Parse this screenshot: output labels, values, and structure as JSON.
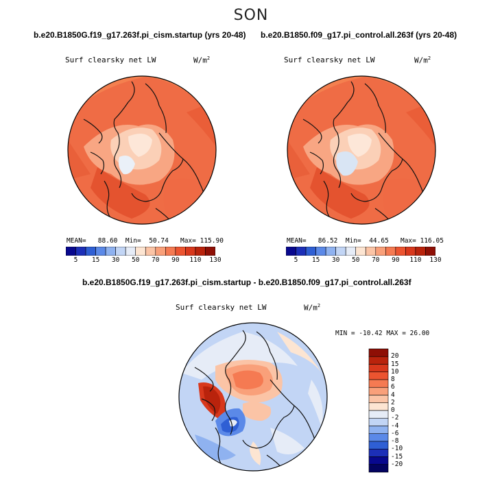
{
  "figure": {
    "season": "SON",
    "variable": "Surf clearsky net LW",
    "units_base": "W/m",
    "units_exp": "2"
  },
  "panel_left": {
    "case": "b.e20.B1850G.f19_g17.263f.pi_cism.startup (yrs 20-48)",
    "mean_label": "MEAN=",
    "mean": "88.60",
    "min_label": "Min=",
    "min": "50.74",
    "max_label": "Max=",
    "max": "115.90"
  },
  "panel_right": {
    "case": "b.e20.B1850.f09_g17.pi_control.all.263f (yrs 20-48)",
    "mean_label": "MEAN=",
    "mean": "86.52",
    "min_label": "Min=",
    "min": "44.65",
    "max_label": "Max=",
    "max": "116.05"
  },
  "panel_diff": {
    "case": "b.e20.B1850G.f19_g17.263f.pi_cism.startup - b.e20.B1850.f09_g17.pi_control.all.263f",
    "minmax_text": "MIN = -10.42 MAX =  26.00"
  },
  "chart_data": [
    {
      "type": "heatmap",
      "projection": "north polar stereographic",
      "title": "Surf clearsky net LW",
      "units": "W/m^2",
      "colorbar": {
        "orientation": "horizontal",
        "labels": [
          "5",
          "15",
          "30",
          "50",
          "70",
          "90",
          "110",
          "130"
        ],
        "colors": [
          "#08088e",
          "#1c2fb8",
          "#2f5fd4",
          "#5b89e8",
          "#8fb2f0",
          "#c2d5f5",
          "#e6ecf7",
          "#fde5d2",
          "#fbc4a6",
          "#f9a07a",
          "#f57a52",
          "#ec5430",
          "#d8381c",
          "#b9230c",
          "#8e0f05"
        ]
      },
      "mean": 88.6,
      "min": 50.74,
      "max": 115.9
    },
    {
      "type": "heatmap",
      "projection": "north polar stereographic",
      "title": "Surf clearsky net LW",
      "units": "W/m^2",
      "colorbar": {
        "orientation": "horizontal",
        "labels": [
          "5",
          "15",
          "30",
          "50",
          "70",
          "90",
          "110",
          "130"
        ]
      },
      "mean": 86.52,
      "min": 44.65,
      "max": 116.05
    },
    {
      "type": "heatmap",
      "projection": "north polar stereographic",
      "title": "Surf clearsky net LW",
      "units": "W/m^2",
      "colorbar": {
        "orientation": "vertical",
        "labels": [
          "20",
          "15",
          "10",
          "8",
          "6",
          "4",
          "2",
          "0",
          "-2",
          "-4",
          "-6",
          "-8",
          "-10",
          "-15",
          "-20"
        ],
        "colors": [
          "#8e0f05",
          "#b9230c",
          "#d8381c",
          "#ec5430",
          "#f57a52",
          "#f9a07a",
          "#fbc4a6",
          "#fde5d2",
          "#e6ecf7",
          "#c2d5f5",
          "#8fb2f0",
          "#5b89e8",
          "#2f5fd4",
          "#1c2fb8",
          "#08088e",
          "#030360"
        ]
      },
      "min": -10.42,
      "max": 26.0
    }
  ]
}
